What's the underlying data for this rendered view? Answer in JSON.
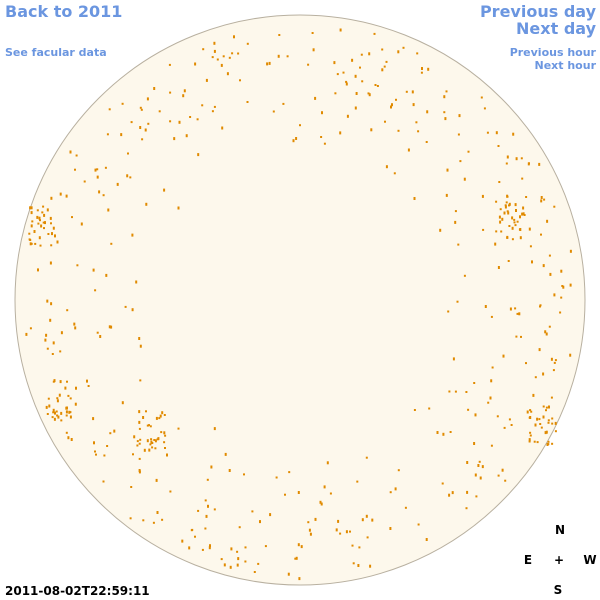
{
  "links": {
    "back": "Back to 2011",
    "facular": "See facular data",
    "previous_day": "Previous day",
    "next_day": "Next day",
    "previous_hour": "Previous hour",
    "next_hour": "Next hour"
  },
  "compass": {
    "north": "N",
    "east": "E",
    "center": "+",
    "west": "W",
    "south": "S"
  },
  "timestamp": "2011-08-02T22:59:11"
}
